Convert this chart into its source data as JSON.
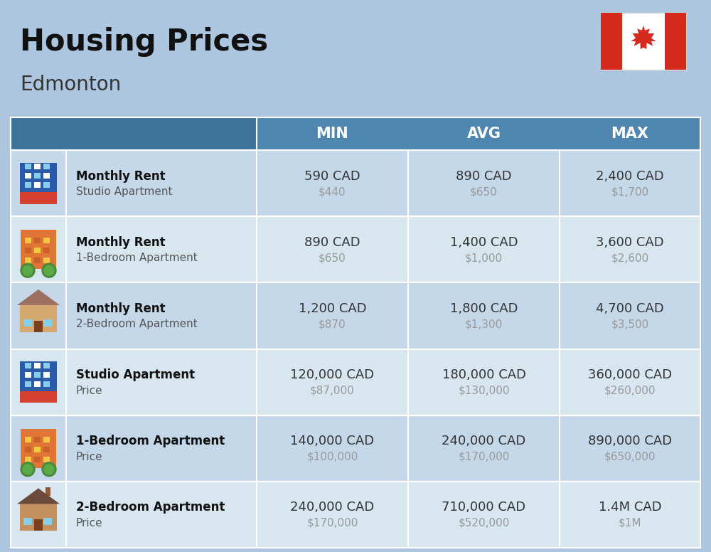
{
  "title": "Housing Prices",
  "subtitle": "Edmonton",
  "background_color": "#adc6df",
  "header_bg_color": "#4f86b0",
  "row_colors": [
    "#c5d8ea",
    "#d8e6f0"
  ],
  "col_header_labels": [
    "MIN",
    "AVG",
    "MAX"
  ],
  "rows": [
    {
      "bold_label": "Monthly Rent",
      "sub_label": "Studio Apartment",
      "min_cad": "590 CAD",
      "min_usd": "$440",
      "avg_cad": "890 CAD",
      "avg_usd": "$650",
      "max_cad": "2,400 CAD",
      "max_usd": "$1,700",
      "icon_type": "blue_apartment"
    },
    {
      "bold_label": "Monthly Rent",
      "sub_label": "1-Bedroom Apartment",
      "min_cad": "890 CAD",
      "min_usd": "$650",
      "avg_cad": "1,400 CAD",
      "avg_usd": "$1,000",
      "max_cad": "3,600 CAD",
      "max_usd": "$2,600",
      "icon_type": "orange_apartment"
    },
    {
      "bold_label": "Monthly Rent",
      "sub_label": "2-Bedroom Apartment",
      "min_cad": "1,200 CAD",
      "min_usd": "$870",
      "avg_cad": "1,800 CAD",
      "avg_usd": "$1,300",
      "max_cad": "4,700 CAD",
      "max_usd": "$3,500",
      "icon_type": "beige_house"
    },
    {
      "bold_label": "Studio Apartment",
      "sub_label": "Price",
      "min_cad": "120,000 CAD",
      "min_usd": "$87,000",
      "avg_cad": "180,000 CAD",
      "avg_usd": "$130,000",
      "max_cad": "360,000 CAD",
      "max_usd": "$260,000",
      "icon_type": "blue_apartment"
    },
    {
      "bold_label": "1-Bedroom Apartment",
      "sub_label": "Price",
      "min_cad": "140,000 CAD",
      "min_usd": "$100,000",
      "avg_cad": "240,000 CAD",
      "avg_usd": "$170,000",
      "max_cad": "890,000 CAD",
      "max_usd": "$650,000",
      "icon_type": "orange_apartment"
    },
    {
      "bold_label": "2-Bedroom Apartment",
      "sub_label": "Price",
      "min_cad": "240,000 CAD",
      "min_usd": "$170,000",
      "avg_cad": "710,000 CAD",
      "avg_usd": "$520,000",
      "max_cad": "1.4M CAD",
      "max_usd": "$1M",
      "icon_type": "brown_house"
    }
  ],
  "usd_color": "#999999",
  "cad_color": "#333333",
  "label_bold_color": "#111111",
  "label_sub_color": "#555555",
  "divider_color": "#ffffff",
  "flag_red": "#d52b1e",
  "flag_white": "#ffffff"
}
